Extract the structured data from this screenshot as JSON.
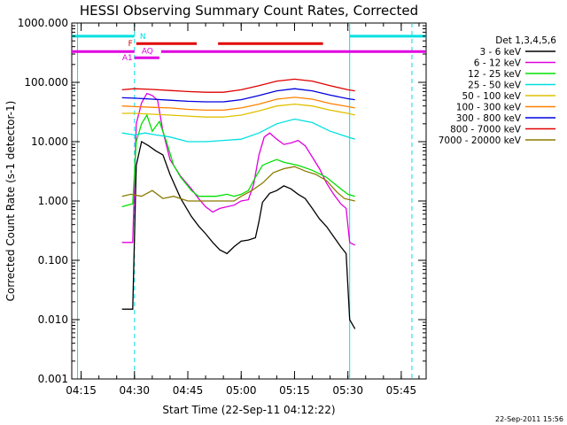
{
  "chart_data": {
    "type": "line",
    "title": "HESSI Observing Summary Count Rates, Corrected",
    "xlabel": "Start Time (22-Sep-11 04:12:22)",
    "ylabel": "Corrected Count Rate (s-1 detector-1)",
    "y_scale": "log",
    "ylim": [
      0.001,
      1000
    ],
    "xlim": [
      "04:12:22",
      "05:52:00"
    ],
    "x_ticks": [
      "04:15",
      "04:30",
      "04:45",
      "05:00",
      "05:15",
      "05:30",
      "05:45"
    ],
    "y_ticks": [
      "0.001",
      "0.010",
      "0.100",
      "1.000",
      "10.000",
      "100.000",
      "1000.000"
    ],
    "grid": false,
    "legend_title": "Det 1,3,4,5,6",
    "legend_position": "right",
    "series": [
      {
        "name": "3 - 6 keV",
        "color": "#000000",
        "points": [
          [
            "04:26:30",
            0.015
          ],
          [
            "04:29:30",
            0.015
          ],
          [
            "04:30:30",
            4.0
          ],
          [
            "04:32:00",
            10.0
          ],
          [
            "04:34:00",
            8.5
          ],
          [
            "04:36:00",
            7.0
          ],
          [
            "04:38:00",
            6.0
          ],
          [
            "04:40:00",
            2.8
          ],
          [
            "04:43:00",
            1.1
          ],
          [
            "04:46:00",
            0.55
          ],
          [
            "04:48:00",
            0.38
          ],
          [
            "04:50:00",
            0.28
          ],
          [
            "04:52:00",
            0.2
          ],
          [
            "04:54:00",
            0.15
          ],
          [
            "04:56:00",
            0.13
          ],
          [
            "04:58:00",
            0.17
          ],
          [
            "05:00:00",
            0.21
          ],
          [
            "05:02:00",
            0.22
          ],
          [
            "05:04:00",
            0.24
          ],
          [
            "05:05:00",
            0.45
          ],
          [
            "05:06:00",
            0.95
          ],
          [
            "05:08:00",
            1.35
          ],
          [
            "05:10:00",
            1.5
          ],
          [
            "05:12:00",
            1.8
          ],
          [
            "05:14:00",
            1.6
          ],
          [
            "05:16:00",
            1.3
          ],
          [
            "05:18:00",
            1.1
          ],
          [
            "05:20:00",
            0.75
          ],
          [
            "05:22:00",
            0.5
          ],
          [
            "05:24:00",
            0.37
          ],
          [
            "05:26:00",
            0.25
          ],
          [
            "05:28:00",
            0.17
          ],
          [
            "05:29:30",
            0.13
          ],
          [
            "05:30:30",
            0.01
          ],
          [
            "05:32:00",
            0.007
          ]
        ]
      },
      {
        "name": "6 - 12 keV",
        "color": "#e000e0",
        "points": [
          [
            "04:26:30",
            0.2
          ],
          [
            "04:29:30",
            0.2
          ],
          [
            "04:30:30",
            20.0
          ],
          [
            "04:32:00",
            45.0
          ],
          [
            "04:33:30",
            65.0
          ],
          [
            "04:35:00",
            60.0
          ],
          [
            "04:36:30",
            50.0
          ],
          [
            "04:38:00",
            15.0
          ],
          [
            "04:40:00",
            5.0
          ],
          [
            "04:43:00",
            2.6
          ],
          [
            "04:46:00",
            1.6
          ],
          [
            "04:48:00",
            1.1
          ],
          [
            "04:50:00",
            0.8
          ],
          [
            "04:52:00",
            0.65
          ],
          [
            "04:54:00",
            0.75
          ],
          [
            "04:56:00",
            0.8
          ],
          [
            "04:58:00",
            0.85
          ],
          [
            "05:00:00",
            1.0
          ],
          [
            "05:02:00",
            1.05
          ],
          [
            "05:03:30",
            1.9
          ],
          [
            "05:05:00",
            6.0
          ],
          [
            "05:06:30",
            12.0
          ],
          [
            "05:08:00",
            14.0
          ],
          [
            "05:10:00",
            11.0
          ],
          [
            "05:12:00",
            9.0
          ],
          [
            "05:14:00",
            9.5
          ],
          [
            "05:16:00",
            10.5
          ],
          [
            "05:18:00",
            8.5
          ],
          [
            "05:20:00",
            5.5
          ],
          [
            "05:22:00",
            3.5
          ],
          [
            "05:24:00",
            2.0
          ],
          [
            "05:26:00",
            1.3
          ],
          [
            "05:28:00",
            0.9
          ],
          [
            "05:29:30",
            0.75
          ],
          [
            "05:30:30",
            0.2
          ],
          [
            "05:32:00",
            0.18
          ]
        ]
      },
      {
        "name": "12 - 25 keV",
        "color": "#00e000",
        "points": [
          [
            "04:26:30",
            0.8
          ],
          [
            "04:29:30",
            0.9
          ],
          [
            "04:30:30",
            10.0
          ],
          [
            "04:32:00",
            20.0
          ],
          [
            "04:33:30",
            28.0
          ],
          [
            "04:35:00",
            15.0
          ],
          [
            "04:37:00",
            22.0
          ],
          [
            "04:39:00",
            10.0
          ],
          [
            "04:41:00",
            4.0
          ],
          [
            "04:43:00",
            2.5
          ],
          [
            "04:46:00",
            1.5
          ],
          [
            "04:48:00",
            1.2
          ],
          [
            "04:50:00",
            1.2
          ],
          [
            "04:53:00",
            1.2
          ],
          [
            "04:56:00",
            1.3
          ],
          [
            "04:58:00",
            1.2
          ],
          [
            "05:00:00",
            1.3
          ],
          [
            "05:02:00",
            1.5
          ],
          [
            "05:04:00",
            2.5
          ],
          [
            "05:06:00",
            4.0
          ],
          [
            "05:08:00",
            4.5
          ],
          [
            "05:10:00",
            5.0
          ],
          [
            "05:12:00",
            4.5
          ],
          [
            "05:16:00",
            4.0
          ],
          [
            "05:20:00",
            3.3
          ],
          [
            "05:24:00",
            2.5
          ],
          [
            "05:28:00",
            1.6
          ],
          [
            "05:30:00",
            1.3
          ],
          [
            "05:32:00",
            1.2
          ]
        ]
      },
      {
        "name": "25 - 50 keV",
        "color": "#00e0e0",
        "points": [
          [
            "04:26:30",
            14.0
          ],
          [
            "04:30:00",
            13.0
          ],
          [
            "04:33:00",
            14.0
          ],
          [
            "04:36:00",
            13.0
          ],
          [
            "04:40:00",
            12.0
          ],
          [
            "04:45:00",
            10.0
          ],
          [
            "04:50:00",
            10.0
          ],
          [
            "04:55:00",
            10.5
          ],
          [
            "05:00:00",
            11.0
          ],
          [
            "05:05:00",
            14.0
          ],
          [
            "05:10:00",
            20.0
          ],
          [
            "05:15:00",
            24.0
          ],
          [
            "05:20:00",
            21.0
          ],
          [
            "05:25:00",
            15.0
          ],
          [
            "05:30:00",
            12.0
          ],
          [
            "05:32:00",
            11.0
          ]
        ]
      },
      {
        "name": "50 - 100 keV",
        "color": "#e0c000",
        "points": [
          [
            "04:26:30",
            30.0
          ],
          [
            "04:30:00",
            30.0
          ],
          [
            "04:35:00",
            29.0
          ],
          [
            "04:40:00",
            28.0
          ],
          [
            "04:45:00",
            27.0
          ],
          [
            "04:50:00",
            26.0
          ],
          [
            "04:55:00",
            26.0
          ],
          [
            "05:00:00",
            28.0
          ],
          [
            "05:05:00",
            33.0
          ],
          [
            "05:10:00",
            40.0
          ],
          [
            "05:15:00",
            43.0
          ],
          [
            "05:20:00",
            40.0
          ],
          [
            "05:25:00",
            34.0
          ],
          [
            "05:30:00",
            30.0
          ],
          [
            "05:32:00",
            28.0
          ]
        ]
      },
      {
        "name": "100 - 300 keV",
        "color": "#ff8000",
        "points": [
          [
            "04:26:30",
            40.0
          ],
          [
            "04:30:00",
            39.0
          ],
          [
            "04:35:00",
            38.0
          ],
          [
            "04:40:00",
            37.0
          ],
          [
            "04:45:00",
            35.0
          ],
          [
            "04:50:00",
            34.0
          ],
          [
            "04:55:00",
            34.0
          ],
          [
            "05:00:00",
            37.0
          ],
          [
            "05:05:00",
            43.0
          ],
          [
            "05:10:00",
            52.0
          ],
          [
            "05:15:00",
            56.0
          ],
          [
            "05:20:00",
            52.0
          ],
          [
            "05:25:00",
            44.0
          ],
          [
            "05:30:00",
            39.0
          ],
          [
            "05:32:00",
            37.0
          ]
        ]
      },
      {
        "name": "300 - 800 keV",
        "color": "#0000e0",
        "points": [
          [
            "04:26:30",
            55.0
          ],
          [
            "04:30:00",
            54.0
          ],
          [
            "04:35:00",
            52.0
          ],
          [
            "04:40:00",
            50.0
          ],
          [
            "04:45:00",
            48.0
          ],
          [
            "04:50:00",
            47.0
          ],
          [
            "04:55:00",
            47.0
          ],
          [
            "05:00:00",
            51.0
          ],
          [
            "05:05:00",
            60.0
          ],
          [
            "05:10:00",
            72.0
          ],
          [
            "05:15:00",
            78.0
          ],
          [
            "05:20:00",
            72.0
          ],
          [
            "05:25:00",
            61.0
          ],
          [
            "05:30:00",
            53.0
          ],
          [
            "05:32:00",
            51.0
          ]
        ]
      },
      {
        "name": "800 - 7000 keV",
        "color": "#e00000",
        "points": [
          [
            "04:26:30",
            75.0
          ],
          [
            "04:30:00",
            78.0
          ],
          [
            "04:35:00",
            76.0
          ],
          [
            "04:40:00",
            73.0
          ],
          [
            "04:45:00",
            70.0
          ],
          [
            "04:50:00",
            68.0
          ],
          [
            "04:55:00",
            68.0
          ],
          [
            "05:00:00",
            75.0
          ],
          [
            "05:05:00",
            88.0
          ],
          [
            "05:10:00",
            105.0
          ],
          [
            "05:15:00",
            113.0
          ],
          [
            "05:20:00",
            105.0
          ],
          [
            "05:25:00",
            88.0
          ],
          [
            "05:30:00",
            75.0
          ],
          [
            "05:32:00",
            72.0
          ]
        ]
      },
      {
        "name": "7000 - 20000 keV",
        "color": "#8a7a00",
        "points": [
          [
            "04:26:30",
            1.2
          ],
          [
            "04:29:00",
            1.3
          ],
          [
            "04:32:00",
            1.2
          ],
          [
            "04:35:00",
            1.5
          ],
          [
            "04:38:00",
            1.1
          ],
          [
            "04:41:00",
            1.2
          ],
          [
            "04:45:00",
            1.0
          ],
          [
            "04:50:00",
            1.0
          ],
          [
            "04:55:00",
            1.0
          ],
          [
            "04:58:00",
            1.0
          ],
          [
            "05:00:00",
            1.2
          ],
          [
            "05:03:00",
            1.5
          ],
          [
            "05:06:00",
            2.0
          ],
          [
            "05:09:00",
            3.0
          ],
          [
            "05:12:00",
            3.5
          ],
          [
            "05:15:00",
            3.8
          ],
          [
            "05:18:00",
            3.2
          ],
          [
            "05:21:00",
            2.8
          ],
          [
            "05:24:00",
            2.2
          ],
          [
            "05:27:00",
            1.4
          ],
          [
            "05:29:00",
            1.1
          ],
          [
            "05:32:00",
            1.0
          ]
        ]
      }
    ],
    "flags": [
      {
        "label": "N",
        "color": "#00e0e0",
        "level": 600,
        "spans": [
          [
            "04:12:22",
            "04:30:00"
          ],
          [
            "05:30:30",
            "05:52:00"
          ]
        ]
      },
      {
        "label": "F",
        "color": "#e00000",
        "level": 450,
        "spans": [
          [
            "04:30:30",
            "04:47:30"
          ],
          [
            "04:53:30",
            "05:23:00"
          ]
        ]
      },
      {
        "label": "AQ",
        "color": "#e000e0",
        "level": 340,
        "spans": []
      },
      {
        "label": "A1",
        "color": "#e000e0",
        "level": 260,
        "spans": [
          [
            "04:30:00",
            "04:37:00"
          ]
        ]
      }
    ],
    "attenuator_band": {
      "color": "#e000e0",
      "level": 330,
      "spans": [
        [
          "04:12:22",
          "04:30:00"
        ],
        [
          "04:37:30",
          "05:52:00"
        ]
      ]
    },
    "markers": [
      {
        "type": "solid",
        "color": "#00e0e0",
        "time": "04:14:00"
      },
      {
        "type": "dashed",
        "color": "#00e0e0",
        "time": "04:30:00"
      },
      {
        "type": "solid",
        "color": "#00e0e0",
        "time": "05:30:30"
      },
      {
        "type": "dashed",
        "color": "#00e0e0",
        "time": "05:48:00"
      }
    ]
  },
  "timestamp": "22-Sep-2011 15:56"
}
